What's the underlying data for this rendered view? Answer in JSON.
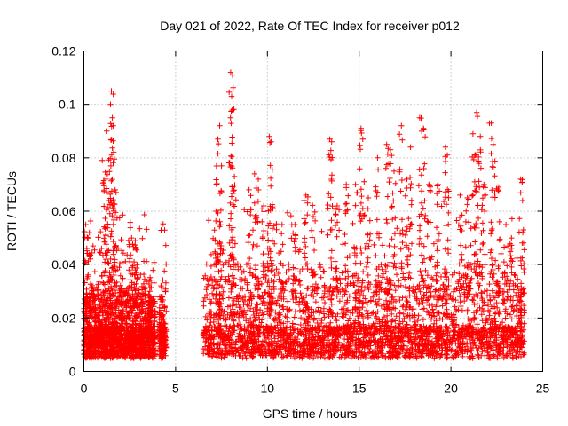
{
  "chart_data": {
    "type": "scatter",
    "title": "Day 021 of 2022, Rate Of TEC Index for receiver p012",
    "xlabel": "GPS time / hours",
    "ylabel": "ROTI / TECUs",
    "xlim": [
      0,
      25
    ],
    "ylim": [
      0,
      0.12
    ],
    "xticks": [
      0,
      5,
      10,
      15,
      20,
      25
    ],
    "xtick_labels": [
      "0",
      "5",
      "10",
      "15",
      "20",
      "25"
    ],
    "yticks": [
      0,
      0.02,
      0.04,
      0.06,
      0.08,
      0.1,
      0.12
    ],
    "ytick_labels": [
      "0",
      "0.02",
      "0.04",
      "0.06",
      "0.08",
      "0.1",
      "0.12"
    ],
    "grid": true,
    "marker": "+",
    "color": "#ff0000",
    "series": [
      {
        "segments": [
          {
            "x_start": 0.0,
            "x_end": 3.9,
            "typical_max": 0.03
          },
          {
            "x_start": 4.1,
            "x_end": 4.5,
            "typical_max": 0.028
          },
          {
            "x_start": 6.5,
            "x_end": 24.0,
            "typical_max": 0.035
          }
        ],
        "spikes": [
          {
            "x": 0.1,
            "y": 0.055
          },
          {
            "x": 0.3,
            "y": 0.052
          },
          {
            "x": 0.5,
            "y": 0.047
          },
          {
            "x": 1.0,
            "y": 0.079
          },
          {
            "x": 1.2,
            "y": 0.072
          },
          {
            "x": 1.25,
            "y": 0.09
          },
          {
            "x": 1.45,
            "y": 0.1
          },
          {
            "x": 1.5,
            "y": 0.105
          },
          {
            "x": 1.55,
            "y": 0.095
          },
          {
            "x": 1.6,
            "y": 0.092
          },
          {
            "x": 1.7,
            "y": 0.068
          },
          {
            "x": 2.6,
            "y": 0.05
          },
          {
            "x": 2.8,
            "y": 0.049
          },
          {
            "x": 3.6,
            "y": 0.028
          },
          {
            "x": 4.2,
            "y": 0.028
          },
          {
            "x": 7.2,
            "y": 0.06
          },
          {
            "x": 7.3,
            "y": 0.087
          },
          {
            "x": 7.4,
            "y": 0.092
          },
          {
            "x": 7.5,
            "y": 0.077
          },
          {
            "x": 8.0,
            "y": 0.112
          },
          {
            "x": 8.1,
            "y": 0.111
          },
          {
            "x": 8.05,
            "y": 0.103
          },
          {
            "x": 8.2,
            "y": 0.073
          },
          {
            "x": 9.0,
            "y": 0.068
          },
          {
            "x": 9.3,
            "y": 0.074
          },
          {
            "x": 9.5,
            "y": 0.072
          },
          {
            "x": 9.8,
            "y": 0.062
          },
          {
            "x": 10.1,
            "y": 0.088
          },
          {
            "x": 10.2,
            "y": 0.086
          },
          {
            "x": 10.3,
            "y": 0.061
          },
          {
            "x": 10.8,
            "y": 0.055
          },
          {
            "x": 11.5,
            "y": 0.055
          },
          {
            "x": 12.1,
            "y": 0.066
          },
          {
            "x": 12.5,
            "y": 0.058
          },
          {
            "x": 13.4,
            "y": 0.087
          },
          {
            "x": 13.5,
            "y": 0.086
          },
          {
            "x": 13.8,
            "y": 0.062
          },
          {
            "x": 14.3,
            "y": 0.07
          },
          {
            "x": 14.8,
            "y": 0.07
          },
          {
            "x": 15.1,
            "y": 0.091
          },
          {
            "x": 15.2,
            "y": 0.087
          },
          {
            "x": 15.5,
            "y": 0.065
          },
          {
            "x": 16.0,
            "y": 0.08
          },
          {
            "x": 16.5,
            "y": 0.085
          },
          {
            "x": 16.7,
            "y": 0.083
          },
          {
            "x": 16.9,
            "y": 0.075
          },
          {
            "x": 17.3,
            "y": 0.092
          },
          {
            "x": 17.6,
            "y": 0.072
          },
          {
            "x": 17.8,
            "y": 0.084
          },
          {
            "x": 18.3,
            "y": 0.095
          },
          {
            "x": 18.5,
            "y": 0.091
          },
          {
            "x": 18.8,
            "y": 0.07
          },
          {
            "x": 19.3,
            "y": 0.07
          },
          {
            "x": 19.7,
            "y": 0.084
          },
          {
            "x": 19.8,
            "y": 0.081
          },
          {
            "x": 20.5,
            "y": 0.066
          },
          {
            "x": 20.9,
            "y": 0.065
          },
          {
            "x": 21.2,
            "y": 0.089
          },
          {
            "x": 21.4,
            "y": 0.097
          },
          {
            "x": 21.6,
            "y": 0.088
          },
          {
            "x": 21.8,
            "y": 0.07
          },
          {
            "x": 22.2,
            "y": 0.093
          },
          {
            "x": 22.3,
            "y": 0.085
          },
          {
            "x": 22.6,
            "y": 0.069
          },
          {
            "x": 23.0,
            "y": 0.055
          },
          {
            "x": 23.3,
            "y": 0.05
          },
          {
            "x": 23.8,
            "y": 0.072
          },
          {
            "x": 23.9,
            "y": 0.064
          }
        ]
      }
    ]
  }
}
